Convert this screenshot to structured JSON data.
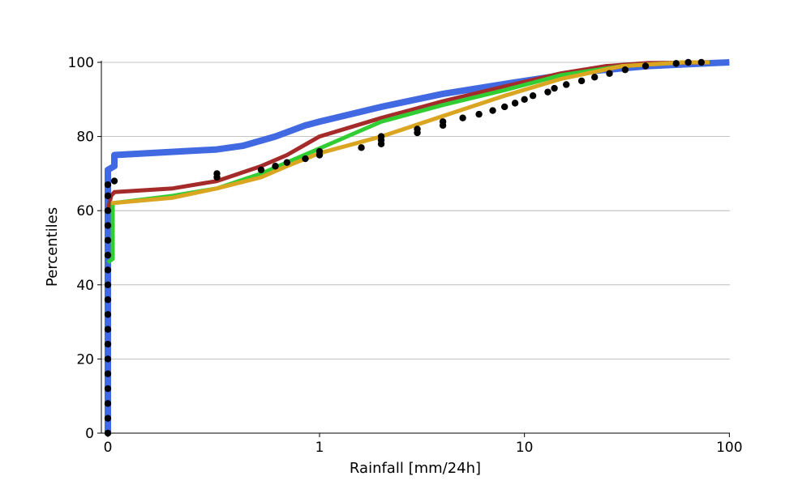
{
  "chart_data": {
    "type": "line",
    "title": "",
    "xlabel": "Rainfall [mm/24h]",
    "ylabel": "Percentiles",
    "x_scale": "symlog",
    "x_ticks": [
      0,
      1,
      10,
      100
    ],
    "x_tick_labels": [
      "0",
      "1",
      "10",
      "100"
    ],
    "ylim": [
      0,
      100
    ],
    "y_ticks": [
      0,
      20,
      40,
      60,
      80,
      100
    ],
    "y_tick_labels": [
      "0",
      "20",
      "40",
      "60",
      "80",
      "100"
    ],
    "grid": "y",
    "series": [
      {
        "color": "#4169e1",
        "style": "line",
        "points": [
          [
            0,
            0
          ],
          [
            0,
            71
          ],
          [
            0.04,
            72
          ],
          [
            0.04,
            75
          ],
          [
            0.2,
            76.5
          ],
          [
            0.3,
            77.5
          ],
          [
            0.5,
            80
          ],
          [
            0.8,
            83
          ],
          [
            1,
            84
          ],
          [
            2,
            88
          ],
          [
            4,
            91.5
          ],
          [
            10,
            95
          ],
          [
            20,
            97.5
          ],
          [
            40,
            99
          ],
          [
            100,
            100
          ]
        ]
      },
      {
        "color": "#a52a2a",
        "style": "line",
        "points": [
          [
            0,
            60
          ],
          [
            0.02,
            64
          ],
          [
            0.04,
            65
          ],
          [
            0.1,
            66
          ],
          [
            0.2,
            68
          ],
          [
            0.4,
            72
          ],
          [
            0.6,
            75
          ],
          [
            1,
            80
          ],
          [
            2,
            85
          ],
          [
            4,
            89.5
          ],
          [
            8,
            93.5
          ],
          [
            15,
            97
          ],
          [
            25,
            99
          ],
          [
            40,
            99.8
          ],
          [
            80,
            100
          ]
        ]
      },
      {
        "color": "#32cd32",
        "style": "line",
        "points": [
          [
            0,
            46
          ],
          [
            0.03,
            47
          ],
          [
            0.03,
            62
          ],
          [
            0.1,
            64
          ],
          [
            0.2,
            66
          ],
          [
            0.4,
            70
          ],
          [
            0.6,
            73
          ],
          [
            0.9,
            76
          ],
          [
            1.5,
            81
          ],
          [
            2,
            84
          ],
          [
            4,
            88.5
          ],
          [
            8,
            92.5
          ],
          [
            15,
            96.5
          ],
          [
            30,
            99
          ],
          [
            60,
            100
          ],
          [
            80,
            100
          ]
        ]
      },
      {
        "color": "#daa520",
        "style": "line",
        "points": [
          [
            0.02,
            62
          ],
          [
            0.1,
            63.5
          ],
          [
            0.2,
            66
          ],
          [
            0.4,
            69
          ],
          [
            0.6,
            72
          ],
          [
            1,
            75.5
          ],
          [
            2,
            80
          ],
          [
            4,
            85.5
          ],
          [
            8,
            91
          ],
          [
            15,
            95.5
          ],
          [
            30,
            99
          ],
          [
            60,
            100
          ],
          [
            80,
            100
          ]
        ]
      },
      {
        "color": "#000000",
        "style": "scatter",
        "points": [
          [
            0,
            0
          ],
          [
            0,
            4
          ],
          [
            0,
            8
          ],
          [
            0,
            12
          ],
          [
            0,
            16
          ],
          [
            0,
            20
          ],
          [
            0,
            24
          ],
          [
            0,
            28
          ],
          [
            0,
            32
          ],
          [
            0,
            36
          ],
          [
            0,
            40
          ],
          [
            0,
            44
          ],
          [
            0,
            48
          ],
          [
            0,
            52
          ],
          [
            0,
            56
          ],
          [
            0,
            60
          ],
          [
            0,
            64
          ],
          [
            0,
            67
          ],
          [
            0.04,
            68
          ],
          [
            0.2,
            69
          ],
          [
            0.2,
            70
          ],
          [
            0.4,
            71
          ],
          [
            0.5,
            72
          ],
          [
            0.6,
            73
          ],
          [
            0.8,
            74
          ],
          [
            1,
            75
          ],
          [
            1,
            76
          ],
          [
            1.6,
            77
          ],
          [
            2,
            78
          ],
          [
            2,
            79
          ],
          [
            2,
            80
          ],
          [
            3,
            81
          ],
          [
            3,
            82
          ],
          [
            4,
            83
          ],
          [
            4,
            84
          ],
          [
            5,
            85
          ],
          [
            6,
            86
          ],
          [
            7,
            87
          ],
          [
            8,
            88
          ],
          [
            9,
            89
          ],
          [
            10,
            90
          ],
          [
            11,
            91
          ],
          [
            13,
            92
          ],
          [
            14,
            93
          ],
          [
            16,
            94
          ],
          [
            19,
            95
          ],
          [
            22,
            96
          ],
          [
            26,
            97
          ],
          [
            31,
            98
          ],
          [
            39,
            99
          ],
          [
            55,
            99.7
          ],
          [
            63,
            100
          ],
          [
            73,
            100
          ]
        ]
      }
    ]
  }
}
